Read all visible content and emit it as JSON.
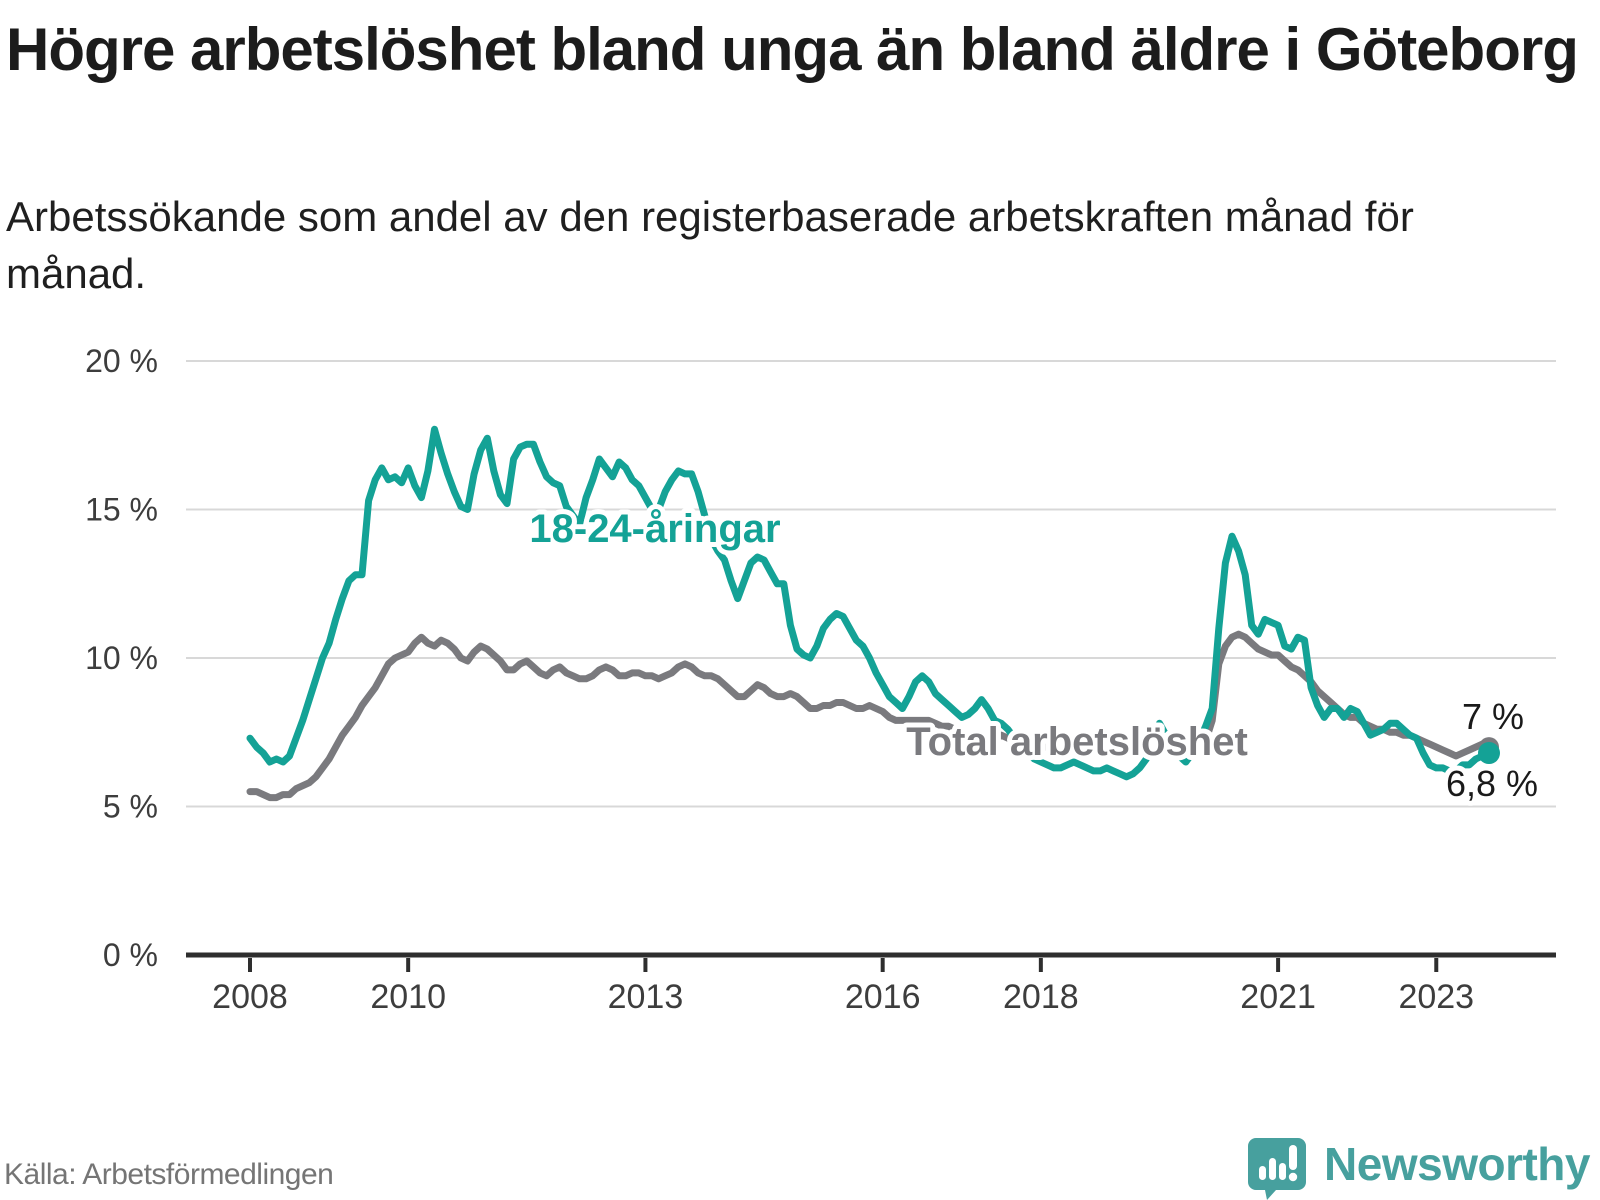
{
  "chart_data": {
    "type": "line",
    "title": "Högre arbetslöshet bland unga än bland äldre i Göteborg",
    "subtitle": "Arbetssökande som andel av den registerbaserade arbetskraften månad för månad.",
    "source": "Källa: Arbetsförmedlingen",
    "frequency": "monthly",
    "x_start": "2008-01",
    "x_end": "2023-09",
    "x_ticks": [
      2008,
      2010,
      2013,
      2016,
      2018,
      2021,
      2023
    ],
    "y_ticks": [
      20,
      15,
      10,
      5,
      0
    ],
    "y_tick_suffix": " %",
    "ylim": [
      0,
      20
    ],
    "grid": true,
    "legend_position": "inline-labels",
    "series": [
      {
        "name": "Total arbetslöshet",
        "color": "#7a7a7e",
        "end_label": "7 %",
        "values": [
          5.5,
          5.5,
          5.4,
          5.3,
          5.3,
          5.4,
          5.4,
          5.6,
          5.7,
          5.8,
          6.0,
          6.3,
          6.6,
          7.0,
          7.4,
          7.7,
          8.0,
          8.4,
          8.7,
          9.0,
          9.4,
          9.8,
          10.0,
          10.1,
          10.2,
          10.5,
          10.7,
          10.5,
          10.4,
          10.6,
          10.5,
          10.3,
          10.0,
          9.9,
          10.2,
          10.4,
          10.3,
          10.1,
          9.9,
          9.6,
          9.6,
          9.8,
          9.9,
          9.7,
          9.5,
          9.4,
          9.6,
          9.7,
          9.5,
          9.4,
          9.3,
          9.3,
          9.4,
          9.6,
          9.7,
          9.6,
          9.4,
          9.4,
          9.5,
          9.5,
          9.4,
          9.4,
          9.3,
          9.4,
          9.5,
          9.7,
          9.8,
          9.7,
          9.5,
          9.4,
          9.4,
          9.3,
          9.1,
          8.9,
          8.7,
          8.7,
          8.9,
          9.1,
          9.0,
          8.8,
          8.7,
          8.7,
          8.8,
          8.7,
          8.5,
          8.3,
          8.3,
          8.4,
          8.4,
          8.5,
          8.5,
          8.4,
          8.3,
          8.3,
          8.4,
          8.3,
          8.2,
          8.0,
          7.9,
          7.9,
          7.9,
          7.9,
          7.9,
          7.9,
          7.8,
          7.7,
          7.7,
          7.6,
          7.5,
          7.4,
          7.4,
          7.3,
          7.3,
          7.3,
          7.4,
          7.3,
          7.2,
          7.1,
          7.1,
          7.1,
          7.0,
          7.0,
          6.9,
          6.9,
          6.9,
          6.9,
          7.0,
          6.9,
          6.8,
          6.8,
          6.8,
          6.8,
          6.8,
          6.8,
          6.8,
          6.8,
          6.8,
          6.9,
          7.0,
          7.0,
          6.9,
          6.9,
          7.0,
          7.0,
          7.1,
          7.2,
          7.9,
          9.8,
          10.4,
          10.7,
          10.8,
          10.7,
          10.5,
          10.3,
          10.2,
          10.1,
          10.1,
          9.9,
          9.7,
          9.6,
          9.4,
          9.2,
          8.9,
          8.7,
          8.5,
          8.3,
          8.1,
          8.0,
          8.0,
          7.8,
          7.7,
          7.6,
          7.6,
          7.5,
          7.5,
          7.4,
          7.4,
          7.3,
          7.2,
          7.1,
          7.0,
          6.9,
          6.8,
          6.7,
          6.8,
          6.9,
          7.0,
          7.1,
          7.0
        ]
      },
      {
        "name": "18-24-åringar",
        "color": "#14a296",
        "end_label": "6,8 %",
        "values": [
          7.3,
          7.0,
          6.8,
          6.5,
          6.6,
          6.5,
          6.7,
          7.3,
          7.9,
          8.6,
          9.3,
          10.0,
          10.5,
          11.3,
          12.0,
          12.6,
          12.8,
          12.8,
          15.3,
          16.0,
          16.4,
          16.0,
          16.1,
          15.9,
          16.4,
          15.8,
          15.4,
          16.3,
          17.7,
          16.9,
          16.2,
          15.6,
          15.1,
          15.0,
          16.2,
          17.0,
          17.4,
          16.3,
          15.5,
          15.2,
          16.7,
          17.1,
          17.2,
          17.2,
          16.6,
          16.1,
          15.9,
          15.8,
          15.1,
          14.8,
          14.5,
          15.4,
          16.0,
          16.7,
          16.4,
          16.1,
          16.6,
          16.4,
          16.0,
          15.8,
          15.4,
          15.0,
          15.0,
          15.6,
          16.0,
          16.3,
          16.2,
          16.2,
          15.6,
          14.8,
          14.0,
          13.6,
          13.3,
          12.6,
          12.0,
          12.6,
          13.2,
          13.4,
          13.3,
          12.9,
          12.5,
          12.5,
          11.1,
          10.3,
          10.1,
          10.0,
          10.4,
          11.0,
          11.3,
          11.5,
          11.4,
          11.0,
          10.6,
          10.4,
          10.0,
          9.5,
          9.1,
          8.7,
          8.5,
          8.3,
          8.7,
          9.2,
          9.4,
          9.2,
          8.8,
          8.6,
          8.4,
          8.2,
          8.0,
          8.1,
          8.3,
          8.6,
          8.3,
          7.9,
          7.8,
          7.6,
          7.3,
          7.0,
          6.8,
          6.6,
          6.5,
          6.4,
          6.3,
          6.3,
          6.4,
          6.5,
          6.4,
          6.3,
          6.2,
          6.2,
          6.3,
          6.2,
          6.1,
          6.0,
          6.1,
          6.3,
          6.6,
          7.2,
          7.8,
          7.4,
          7.0,
          6.7,
          6.5,
          6.8,
          7.2,
          7.7,
          8.3,
          11.0,
          13.2,
          14.1,
          13.6,
          12.8,
          11.1,
          10.8,
          11.3,
          11.2,
          11.1,
          10.4,
          10.3,
          10.7,
          10.6,
          9.0,
          8.4,
          8.0,
          8.3,
          8.3,
          8.0,
          8.3,
          8.2,
          7.8,
          7.4,
          7.5,
          7.6,
          7.8,
          7.8,
          7.6,
          7.4,
          7.3,
          6.8,
          6.4,
          6.3,
          6.3,
          6.2,
          6.2,
          6.4,
          6.4,
          6.6,
          6.7,
          6.8
        ]
      }
    ]
  },
  "footer": {
    "brand": "Newsworthy",
    "brand_color": "#47a09e"
  },
  "colors": {
    "youth_line": "#14a296",
    "total_line": "#7a7a7e",
    "grid": "#d8d8d8",
    "axis": "#2e2e2e",
    "value_label": "#1a1a1a"
  }
}
